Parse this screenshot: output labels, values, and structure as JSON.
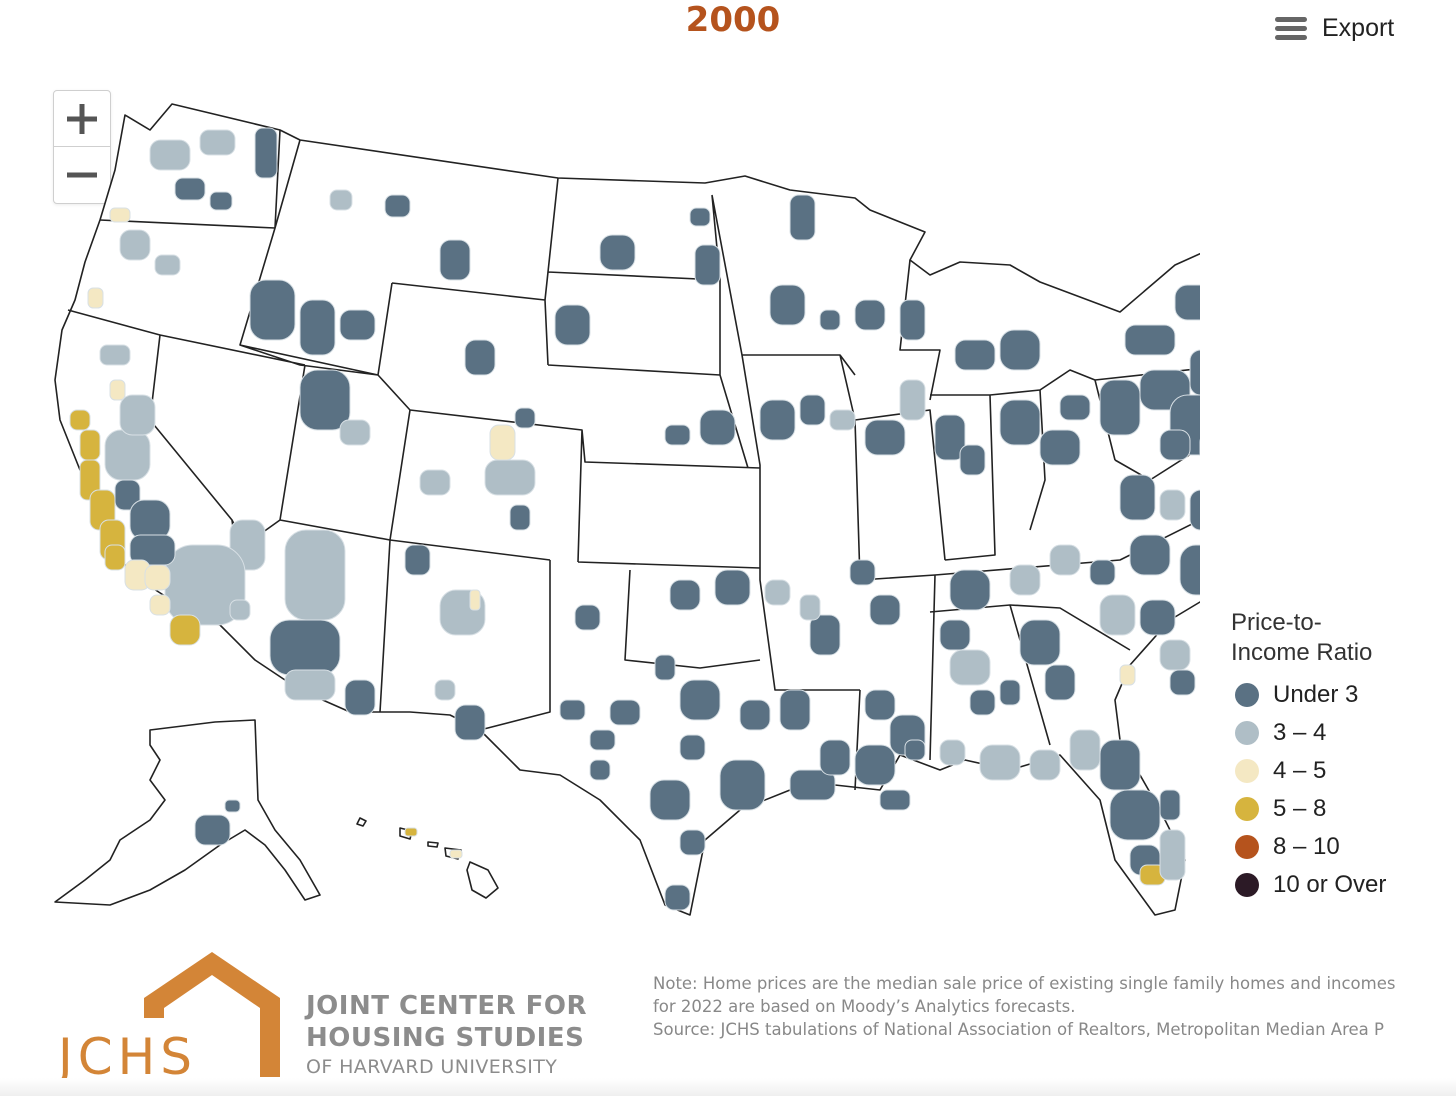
{
  "title": "2000",
  "toolbar": {
    "export_label": "Export"
  },
  "zoom": {
    "in_icon": "plus-icon",
    "out_icon": "minus-icon"
  },
  "map": {
    "region": "United States metropolitan areas",
    "base_fill": "#ffffff",
    "border_color": "#222222"
  },
  "legend": {
    "title": "Price-to-\nIncome Ratio",
    "items": [
      {
        "label": "Under 3",
        "color": "#5a7183"
      },
      {
        "label": "3 – 4",
        "color": "#afbec6"
      },
      {
        "label": "4 – 5",
        "color": "#f4e8c3"
      },
      {
        "label": "5 – 8",
        "color": "#d6b43e"
      },
      {
        "label": "8 – 10",
        "color": "#b5531d"
      },
      {
        "label": "10 or Over",
        "color": "#2c1a26"
      }
    ]
  },
  "logo": {
    "abbr": "JCHS",
    "line1": "JOINT CENTER FOR",
    "line2": "HOUSING STUDIES",
    "line3": "OF HARVARD UNIVERSITY",
    "color": "#d38537"
  },
  "notes": {
    "line1": "Note: Home prices are the median sale price of existing single family homes and incomes",
    "line2": "for 2022 are based on Moody’s Analytics forecasts.",
    "line3": "Source: JCHS tabulations of National Association of Realtors, Metropolitan Median Area P"
  }
}
